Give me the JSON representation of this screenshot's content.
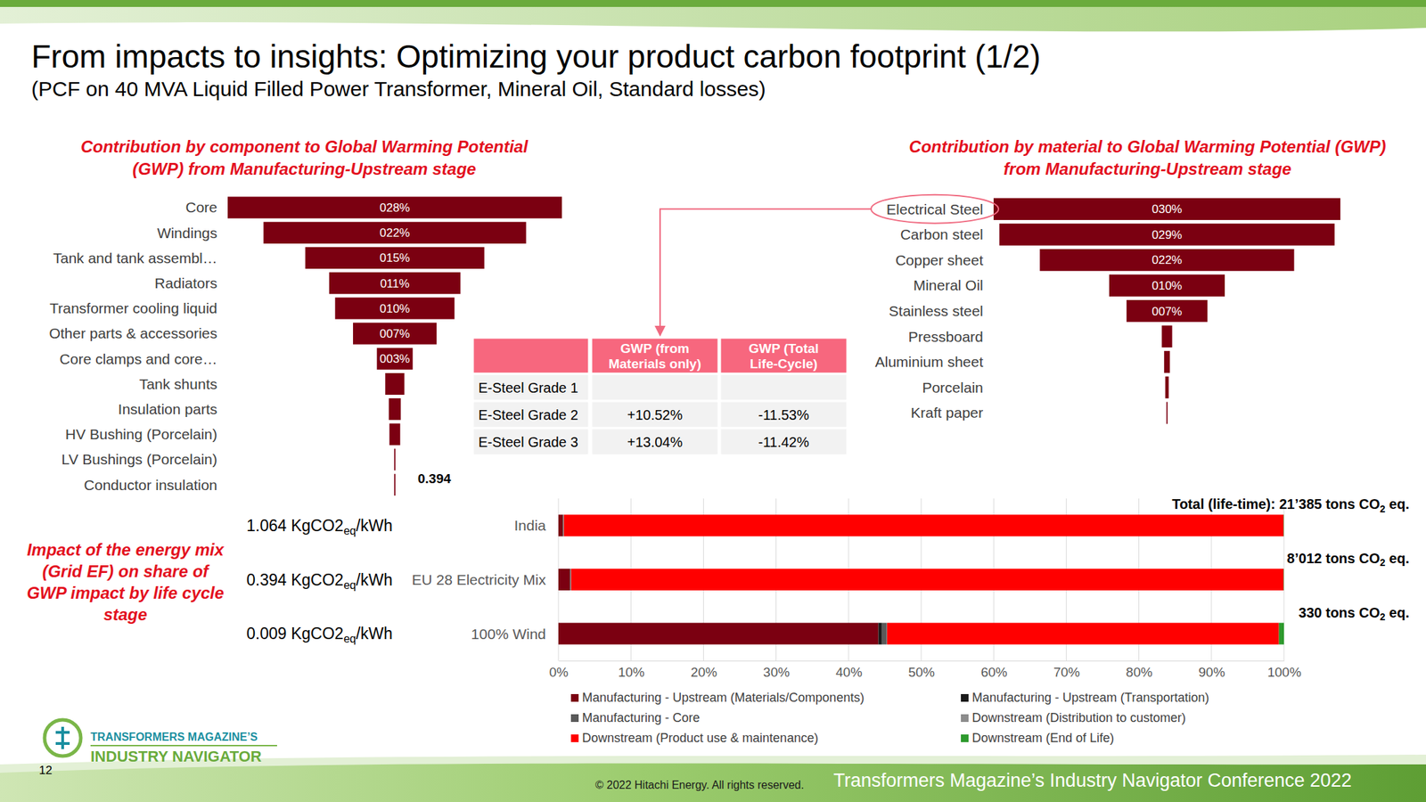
{
  "header": {
    "title": "From impacts to insights: Optimizing your product carbon footprint (1/2)",
    "subtitle": "(PCF on 40 MVA Liquid Filled Power Transformer, Mineral Oil, Standard losses)"
  },
  "chart_data": [
    {
      "type": "funnel",
      "orientation": "horizontal",
      "title": "Contribution by component to Global Warming Potential (GWP) from Manufacturing-Upstream stage",
      "categories": [
        "Core",
        "Windings",
        "Tank and tank assembl…",
        "Radiators",
        "Transformer cooling liquid",
        "Other parts & accessories",
        "Core clamps and core…",
        "Tank shunts",
        "Insulation parts",
        "HV Bushing (Porcelain)",
        "LV Bushings (Porcelain)",
        "Conductor insulation"
      ],
      "values": [
        28,
        22,
        15,
        11,
        10,
        7,
        3,
        1.6,
        1,
        0.9,
        0.1,
        0.1
      ],
      "value_labels": [
        "028%",
        "022%",
        "015%",
        "011%",
        "010%",
        "007%",
        "003%",
        null,
        null,
        null,
        null,
        null
      ],
      "color": "#7b0011",
      "xlim": [
        0,
        28
      ],
      "tick_labels": false,
      "data_labels": true,
      "annotations": [
        "0.394"
      ]
    },
    {
      "type": "funnel",
      "orientation": "horizontal",
      "title": "Contribution by material to Global Warming Potential (GWP) from Manufacturing-Upstream stage",
      "categories": [
        "Electrical Steel",
        "Carbon steel",
        "Copper sheet",
        "Mineral Oil",
        "Stainless steel",
        "Pressboard",
        "Aluminium sheet",
        "Porcelain",
        "Kraft paper"
      ],
      "values": [
        30,
        29,
        22,
        10,
        7,
        0.9,
        0.5,
        0.3,
        0.1
      ],
      "value_labels": [
        "030%",
        "029%",
        "022%",
        "010%",
        "007%",
        null,
        null,
        null,
        null
      ],
      "color": "#7b0011",
      "xlim": [
        0,
        30
      ],
      "tick_labels": false,
      "data_labels": true
    },
    {
      "type": "bar",
      "orientation": "horizontal",
      "stacked": true,
      "title": "Impact of the energy mix (Grid EF) on share of GWP impact by life cycle stage",
      "categories": [
        "India",
        "EU 28 Electricity Mix",
        "100% Wind"
      ],
      "row_labels": [
        "1.064 KgCO2eq/kWh",
        "0.394 KgCO2eq/kWh",
        "0.009 KgCO2eq/kWh"
      ],
      "annotations": [
        "Total (life-time): 21’385 tons CO2 eq.",
        "8’012 tons CO2 eq.",
        "330 tons CO2 eq."
      ],
      "series": [
        {
          "name": "Manufacturing - Upstream (Materials/Components)",
          "color": "#7b0011",
          "values": [
            0.6,
            1.6,
            44.1
          ]
        },
        {
          "name": "Manufacturing - Upstream (Transportation)",
          "color": "#1a1a1a",
          "values": [
            0.05,
            0.05,
            0.5
          ]
        },
        {
          "name": "Manufacturing - Core",
          "color": "#595959",
          "values": [
            0.05,
            0.05,
            0.6
          ]
        },
        {
          "name": "Downstream (Distribution to customer)",
          "color": "#8c8c8c",
          "values": [
            0.05,
            0.05,
            0.1
          ]
        },
        {
          "name": "Downstream (Product use & maintenance)",
          "color": "#ff0000",
          "values": [
            99.2,
            98.2,
            54.0
          ]
        },
        {
          "name": "Downstream (End of Life)",
          "color": "#2e9a2e",
          "values": [
            0.05,
            0.05,
            0.7
          ]
        }
      ],
      "xlim": [
        0,
        100
      ],
      "xticks": [
        {
          "value": 0,
          "label": "0%"
        },
        {
          "value": 10,
          "label": "10%"
        },
        {
          "value": 20,
          "label": "20%"
        },
        {
          "value": 30,
          "label": "30%"
        },
        {
          "value": 40,
          "label": "40%"
        },
        {
          "value": 50,
          "label": "50%"
        },
        {
          "value": 60,
          "label": "60%"
        },
        {
          "value": 70,
          "label": "70%"
        },
        {
          "value": 80,
          "label": "80%"
        },
        {
          "value": 90,
          "label": "90%"
        },
        {
          "value": 100,
          "label": "100%"
        }
      ],
      "grid": true,
      "legend": "bottom"
    }
  ],
  "table": {
    "columns": [
      null,
      "GWP (from Materials only)",
      "GWP (Total Life-Cycle)"
    ],
    "rows": [
      [
        "E-Steel Grade 1",
        null,
        null
      ],
      [
        "E-Steel Grade 2",
        "+10.52%",
        "-11.53%"
      ],
      [
        "E-Steel Grade 3",
        "+13.04%",
        "-11.42%"
      ]
    ]
  },
  "footer": {
    "logo_line1": "TRANSFORMERS MAGAZINE’S",
    "logo_line2": "INDUSTRY NAVIGATOR",
    "page": 12,
    "copyright": "© 2022 Hitachi Energy. All rights reserved.",
    "conference": "Transformers Magazine’s Industry Navigator Conference 2022"
  }
}
